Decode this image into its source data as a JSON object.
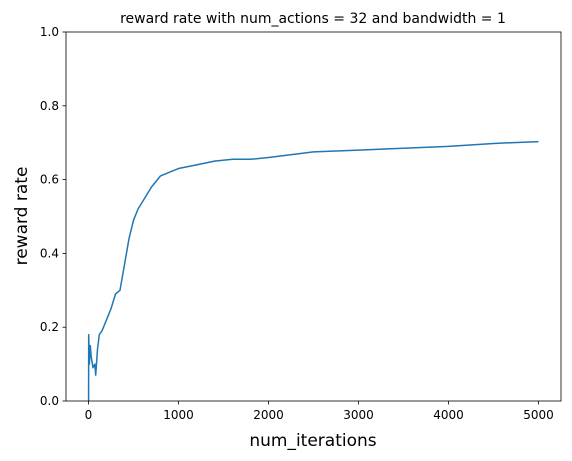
{
  "chart_data": {
    "type": "line",
    "title": "reward rate with num_actions = 32 and bandwidth = 1",
    "xlabel": "num_iterations",
    "ylabel": "reward rate",
    "x": [
      1,
      2,
      10,
      20,
      30,
      50,
      70,
      80,
      100,
      120,
      150,
      200,
      250,
      300,
      350,
      400,
      450,
      500,
      550,
      600,
      700,
      800,
      900,
      1000,
      1200,
      1400,
      1600,
      1800,
      2000,
      2500,
      3000,
      3500,
      4000,
      4500,
      5000
    ],
    "values": [
      0.0,
      0.18,
      0.1,
      0.15,
      0.12,
      0.09,
      0.1,
      0.07,
      0.14,
      0.18,
      0.19,
      0.22,
      0.25,
      0.29,
      0.3,
      0.37,
      0.44,
      0.49,
      0.52,
      0.54,
      0.58,
      0.61,
      0.62,
      0.63,
      0.64,
      0.65,
      0.655,
      0.655,
      0.66,
      0.675,
      0.68,
      0.685,
      0.69,
      0.698,
      0.703
    ],
    "color": "#1f77b4",
    "xlim": [
      -250,
      5250
    ],
    "xticks": [
      0,
      1000,
      2000,
      3000,
      4000,
      5000
    ],
    "ylim": [
      0,
      1
    ],
    "yticks": [
      {
        "value": 0,
        "label": "0.0"
      },
      0.2,
      0.4,
      0.6,
      0.8,
      {
        "value": 1,
        "label": "1.0"
      }
    ]
  }
}
